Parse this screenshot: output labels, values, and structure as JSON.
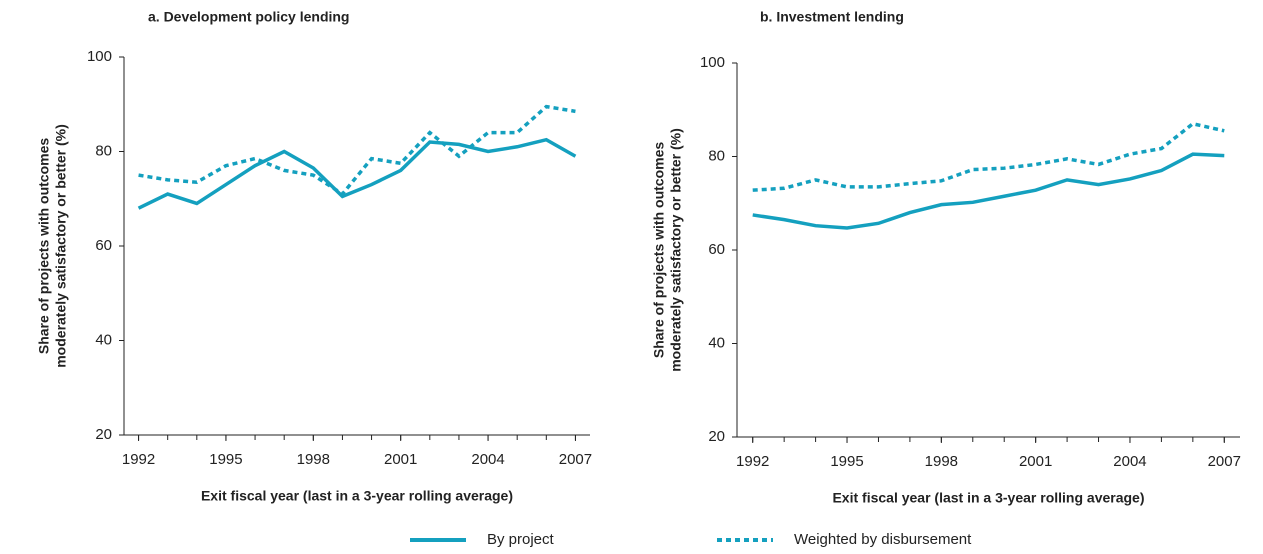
{
  "chart_data": [
    {
      "type": "line",
      "title": "a. Development policy lending",
      "ylabel": [
        "Share of projects with outcomes",
        "moderately satisfactory or better (%)"
      ],
      "xlabel": "Exit fiscal year (last in a 3-year rolling average)",
      "x": [
        1992,
        1993,
        1994,
        1995,
        1996,
        1997,
        1998,
        1999,
        2000,
        2001,
        2002,
        2003,
        2004,
        2005,
        2006,
        2007
      ],
      "series": [
        {
          "name": "By project",
          "color": "#14a0bf",
          "dash": "solid",
          "values": [
            68,
            71,
            69,
            73,
            77,
            80,
            76.5,
            70.5,
            73,
            76,
            82,
            81.5,
            80,
            81,
            82.5,
            79
          ]
        },
        {
          "name": "Weighted by disbursement",
          "color": "#14a0bf",
          "dash": "dotted",
          "values": [
            75,
            74,
            73.5,
            77,
            78.5,
            76,
            75,
            71,
            78.5,
            77.5,
            84,
            79,
            84,
            84,
            89.5,
            88.5
          ]
        }
      ],
      "xlim": [
        1991.5,
        2007.5
      ],
      "xticks": [
        1992,
        1995,
        1998,
        2001,
        2004,
        2007
      ],
      "ylim": [
        20,
        100
      ],
      "yticks": [
        20,
        40,
        60,
        80,
        100
      ]
    },
    {
      "type": "line",
      "title": "b. Investment lending",
      "ylabel": [
        "Share of projects with outcomes",
        "moderately satisfactory or better (%)"
      ],
      "xlabel": "Exit fiscal year (last in a 3-year rolling average)",
      "x": [
        1992,
        1993,
        1994,
        1995,
        1996,
        1997,
        1998,
        1999,
        2000,
        2001,
        2002,
        2003,
        2004,
        2005,
        2006,
        2007
      ],
      "series": [
        {
          "name": "By project",
          "color": "#14a0bf",
          "dash": "solid",
          "values": [
            67.5,
            66.5,
            65.2,
            64.7,
            65.7,
            68,
            69.7,
            70.2,
            71.5,
            72.8,
            75,
            74,
            75.2,
            77,
            80.5,
            80.2
          ]
        },
        {
          "name": "Weighted by disbursement",
          "color": "#14a0bf",
          "dash": "dotted",
          "values": [
            72.8,
            73.2,
            75,
            73.5,
            73.5,
            74.2,
            74.8,
            77.2,
            77.5,
            78.3,
            79.5,
            78.3,
            80.5,
            81.7,
            87,
            85.5
          ]
        }
      ],
      "xlim": [
        1991.5,
        2007.5
      ],
      "xticks": [
        1992,
        1995,
        1998,
        2001,
        2004,
        2007
      ],
      "ylim": [
        20,
        100
      ],
      "yticks": [
        20,
        40,
        60,
        80,
        100
      ]
    }
  ]
}
